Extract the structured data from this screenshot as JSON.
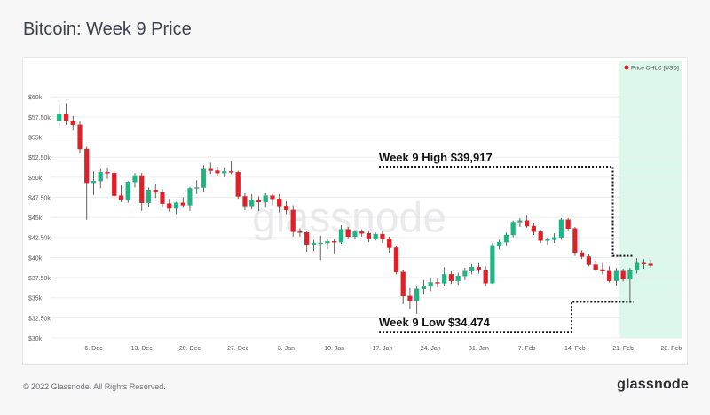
{
  "page": {
    "title": "Bitcoin: Week 9 Price",
    "footer_copyright": "© 2022 Glassnode. All Rights Reserved.",
    "footer_logo": "glassnode",
    "watermark": "glassnode"
  },
  "colors": {
    "up": "#1fb583",
    "down": "#e31f26",
    "highlight": "#dcf7ec",
    "grid": "#ededf0",
    "axis_text": "#5b5b63"
  },
  "chart_data": {
    "type": "candlestick",
    "title": "Bitcoin: Week 9 Price",
    "legend": {
      "label": "Price OHLC [USD]",
      "placement": "top-right",
      "marker_color": "#e31f26"
    },
    "ylim": [
      30000,
      62000
    ],
    "y_ticks": [
      {
        "v": 30000,
        "label": "$30k"
      },
      {
        "v": 32500,
        "label": "$32.50k"
      },
      {
        "v": 35000,
        "label": "$35k"
      },
      {
        "v": 37500,
        "label": "$37.50k"
      },
      {
        "v": 40000,
        "label": "$40k"
      },
      {
        "v": 42500,
        "label": "$42.50k"
      },
      {
        "v": 45000,
        "label": "$45k"
      },
      {
        "v": 47500,
        "label": "$47.50k"
      },
      {
        "v": 50000,
        "label": "$50k"
      },
      {
        "v": 52500,
        "label": "$52.50k"
      },
      {
        "v": 55000,
        "label": "$55k"
      },
      {
        "v": 57500,
        "label": "$57.50k"
      },
      {
        "v": 60000,
        "label": "$60k"
      }
    ],
    "x_ticks": [
      {
        "day": 6,
        "label": "6. Dec"
      },
      {
        "day": 13,
        "label": "13. Dec"
      },
      {
        "day": 20,
        "label": "20. Dec"
      },
      {
        "day": 27,
        "label": "27. Dec"
      },
      {
        "day": 34,
        "label": "3. Jan"
      },
      {
        "day": 41,
        "label": "10. Jan"
      },
      {
        "day": 48,
        "label": "17. Jan"
      },
      {
        "day": 55,
        "label": "24. Jan"
      },
      {
        "day": 62,
        "label": "31. Jan"
      },
      {
        "day": 69,
        "label": "7. Feb"
      },
      {
        "day": 76,
        "label": "14. Feb"
      },
      {
        "day": 83,
        "label": "21. Feb"
      },
      {
        "day": 90,
        "label": "28. Feb"
      }
    ],
    "x_domain_days": [
      0,
      91.5
    ],
    "x_day_zero": "30. Nov",
    "highlight_days": [
      82.5,
      91.5
    ],
    "candles": [
      {
        "day": 1,
        "o": 57000,
        "h": 59200,
        "l": 56300,
        "c": 57900
      },
      {
        "day": 2,
        "o": 57900,
        "h": 59200,
        "l": 56500,
        "c": 57000
      },
      {
        "day": 3,
        "o": 57000,
        "h": 57600,
        "l": 55800,
        "c": 56500
      },
      {
        "day": 4,
        "o": 56500,
        "h": 57000,
        "l": 53000,
        "c": 53500
      },
      {
        "day": 5,
        "o": 53500,
        "h": 53800,
        "l": 44700,
        "c": 49300
      },
      {
        "day": 6,
        "o": 49300,
        "h": 50700,
        "l": 47800,
        "c": 49500
      },
      {
        "day": 7,
        "o": 49500,
        "h": 51000,
        "l": 48600,
        "c": 50600
      },
      {
        "day": 8,
        "o": 50600,
        "h": 51200,
        "l": 49800,
        "c": 50500
      },
      {
        "day": 9,
        "o": 50500,
        "h": 50800,
        "l": 47300,
        "c": 47700
      },
      {
        "day": 10,
        "o": 47700,
        "h": 49000,
        "l": 46900,
        "c": 47200
      },
      {
        "day": 11,
        "o": 47200,
        "h": 49500,
        "l": 46800,
        "c": 49400
      },
      {
        "day": 12,
        "o": 49400,
        "h": 50500,
        "l": 48700,
        "c": 50200
      },
      {
        "day": 13,
        "o": 50200,
        "h": 50500,
        "l": 45800,
        "c": 46800
      },
      {
        "day": 14,
        "o": 46800,
        "h": 48700,
        "l": 46300,
        "c": 48400
      },
      {
        "day": 15,
        "o": 48400,
        "h": 49200,
        "l": 47400,
        "c": 48100
      },
      {
        "day": 16,
        "o": 48100,
        "h": 48500,
        "l": 46200,
        "c": 46700
      },
      {
        "day": 17,
        "o": 46700,
        "h": 47300,
        "l": 45700,
        "c": 46100
      },
      {
        "day": 18,
        "o": 46100,
        "h": 46900,
        "l": 45400,
        "c": 46800
      },
      {
        "day": 19,
        "o": 46800,
        "h": 47500,
        "l": 46200,
        "c": 46500
      },
      {
        "day": 20,
        "o": 46500,
        "h": 48800,
        "l": 45800,
        "c": 48600
      },
      {
        "day": 21,
        "o": 48600,
        "h": 49600,
        "l": 47900,
        "c": 48700
      },
      {
        "day": 22,
        "o": 48700,
        "h": 51500,
        "l": 48200,
        "c": 51000
      },
      {
        "day": 23,
        "o": 51000,
        "h": 51800,
        "l": 50400,
        "c": 50800
      },
      {
        "day": 24,
        "o": 50800,
        "h": 51300,
        "l": 50100,
        "c": 50500
      },
      {
        "day": 25,
        "o": 50500,
        "h": 51200,
        "l": 50000,
        "c": 50700
      },
      {
        "day": 26,
        "o": 50700,
        "h": 52000,
        "l": 50400,
        "c": 50600
      },
      {
        "day": 27,
        "o": 50600,
        "h": 50800,
        "l": 47300,
        "c": 47600
      },
      {
        "day": 28,
        "o": 47600,
        "h": 48000,
        "l": 45900,
        "c": 46400
      },
      {
        "day": 29,
        "o": 46400,
        "h": 47900,
        "l": 46000,
        "c": 47200
      },
      {
        "day": 30,
        "o": 47200,
        "h": 47600,
        "l": 45800,
        "c": 46900
      },
      {
        "day": 31,
        "o": 46900,
        "h": 48000,
        "l": 46200,
        "c": 47700
      },
      {
        "day": 32,
        "o": 47700,
        "h": 47900,
        "l": 46500,
        "c": 47300
      },
      {
        "day": 33,
        "o": 47300,
        "h": 47900,
        "l": 45600,
        "c": 46400
      },
      {
        "day": 34,
        "o": 46400,
        "h": 47000,
        "l": 45400,
        "c": 45900
      },
      {
        "day": 35,
        "o": 45900,
        "h": 46500,
        "l": 42600,
        "c": 43200
      },
      {
        "day": 36,
        "o": 43200,
        "h": 43600,
        "l": 42600,
        "c": 43100
      },
      {
        "day": 37,
        "o": 43100,
        "h": 43300,
        "l": 40700,
        "c": 41600
      },
      {
        "day": 38,
        "o": 41600,
        "h": 42200,
        "l": 40800,
        "c": 41800
      },
      {
        "day": 39,
        "o": 41800,
        "h": 42700,
        "l": 39700,
        "c": 41800
      },
      {
        "day": 40,
        "o": 41800,
        "h": 42300,
        "l": 41000,
        "c": 42000
      },
      {
        "day": 41,
        "o": 42000,
        "h": 42300,
        "l": 40500,
        "c": 41900
      },
      {
        "day": 42,
        "o": 41900,
        "h": 44000,
        "l": 41700,
        "c": 43500
      },
      {
        "day": 43,
        "o": 43500,
        "h": 43800,
        "l": 42400,
        "c": 42600
      },
      {
        "day": 44,
        "o": 42600,
        "h": 43400,
        "l": 42300,
        "c": 43200
      },
      {
        "day": 45,
        "o": 43200,
        "h": 43500,
        "l": 42600,
        "c": 43000
      },
      {
        "day": 46,
        "o": 43000,
        "h": 43200,
        "l": 41900,
        "c": 42300
      },
      {
        "day": 47,
        "o": 42300,
        "h": 43100,
        "l": 42100,
        "c": 42900
      },
      {
        "day": 48,
        "o": 42900,
        "h": 43300,
        "l": 41800,
        "c": 42300
      },
      {
        "day": 49,
        "o": 42300,
        "h": 42600,
        "l": 40600,
        "c": 41200
      },
      {
        "day": 50,
        "o": 41200,
        "h": 41500,
        "l": 37900,
        "c": 38200
      },
      {
        "day": 51,
        "o": 38200,
        "h": 38400,
        "l": 34200,
        "c": 35200
      },
      {
        "day": 52,
        "o": 35200,
        "h": 36200,
        "l": 33600,
        "c": 34600
      },
      {
        "day": 53,
        "o": 34600,
        "h": 36400,
        "l": 33000,
        "c": 36100
      },
      {
        "day": 54,
        "o": 36100,
        "h": 37200,
        "l": 35400,
        "c": 36400
      },
      {
        "day": 55,
        "o": 36400,
        "h": 37400,
        "l": 35800,
        "c": 36900
      },
      {
        "day": 56,
        "o": 36900,
        "h": 37500,
        "l": 36300,
        "c": 36800
      },
      {
        "day": 57,
        "o": 36800,
        "h": 38800,
        "l": 36400,
        "c": 37900
      },
      {
        "day": 58,
        "o": 37900,
        "h": 38300,
        "l": 36700,
        "c": 37100
      },
      {
        "day": 59,
        "o": 37100,
        "h": 38100,
        "l": 36600,
        "c": 37700
      },
      {
        "day": 60,
        "o": 37700,
        "h": 38700,
        "l": 37200,
        "c": 38300
      },
      {
        "day": 61,
        "o": 38300,
        "h": 39200,
        "l": 37900,
        "c": 38800
      },
      {
        "day": 62,
        "o": 38800,
        "h": 39300,
        "l": 38000,
        "c": 38400
      },
      {
        "day": 63,
        "o": 38400,
        "h": 38900,
        "l": 36400,
        "c": 36800
      },
      {
        "day": 64,
        "o": 36800,
        "h": 41800,
        "l": 36700,
        "c": 41500
      },
      {
        "day": 65,
        "o": 41500,
        "h": 42200,
        "l": 41000,
        "c": 41900
      },
      {
        "day": 66,
        "o": 41900,
        "h": 43100,
        "l": 41500,
        "c": 42800
      },
      {
        "day": 67,
        "o": 42800,
        "h": 44600,
        "l": 42500,
        "c": 44400
      },
      {
        "day": 68,
        "o": 44400,
        "h": 44900,
        "l": 43800,
        "c": 44600
      },
      {
        "day": 69,
        "o": 44600,
        "h": 45200,
        "l": 43700,
        "c": 43900
      },
      {
        "day": 70,
        "o": 43900,
        "h": 44300,
        "l": 42800,
        "c": 43200
      },
      {
        "day": 71,
        "o": 43200,
        "h": 43400,
        "l": 41800,
        "c": 42100
      },
      {
        "day": 72,
        "o": 42100,
        "h": 42500,
        "l": 41600,
        "c": 42200
      },
      {
        "day": 73,
        "o": 42200,
        "h": 43000,
        "l": 41800,
        "c": 42500
      },
      {
        "day": 74,
        "o": 42500,
        "h": 44900,
        "l": 42200,
        "c": 44700
      },
      {
        "day": 75,
        "o": 44700,
        "h": 44900,
        "l": 43400,
        "c": 43600
      },
      {
        "day": 76,
        "o": 43600,
        "h": 43800,
        "l": 40200,
        "c": 40600
      },
      {
        "day": 77,
        "o": 40600,
        "h": 40900,
        "l": 39800,
        "c": 40100
      },
      {
        "day": 78,
        "o": 40100,
        "h": 40400,
        "l": 38900,
        "c": 39100
      },
      {
        "day": 79,
        "o": 39100,
        "h": 39600,
        "l": 38300,
        "c": 38500
      },
      {
        "day": 80,
        "o": 38500,
        "h": 39300,
        "l": 37900,
        "c": 38300
      },
      {
        "day": 81,
        "o": 38300,
        "h": 38900,
        "l": 36900,
        "c": 37100
      },
      {
        "day": 82,
        "o": 37100,
        "h": 38700,
        "l": 36500,
        "c": 38300
      },
      {
        "day": 83,
        "o": 38300,
        "h": 38600,
        "l": 37000,
        "c": 37300
      },
      {
        "day": 84,
        "o": 37300,
        "h": 38700,
        "l": 34474,
        "c": 38400
      },
      {
        "day": 85,
        "o": 38400,
        "h": 39917,
        "l": 38000,
        "c": 39300
      },
      {
        "day": 86,
        "o": 39300,
        "h": 39800,
        "l": 38600,
        "c": 39200
      },
      {
        "day": 87,
        "o": 39200,
        "h": 39700,
        "l": 38700,
        "c": 39000
      }
    ],
    "annotations": [
      {
        "id": "week9-high",
        "label": "Week 9 High $39,917",
        "value": 39917,
        "line_value": 51300,
        "from_day": 47.5,
        "to_day": 81.5,
        "drop_to_value": 40200,
        "end_day": 84.5
      },
      {
        "id": "week9-low",
        "label": "Week 9 Low $34,474",
        "value": 34474,
        "line_value": 30750,
        "from_day": 47.5,
        "to_day": 75.5,
        "rise_to_value": 34474,
        "end_day": 84.5
      }
    ]
  }
}
